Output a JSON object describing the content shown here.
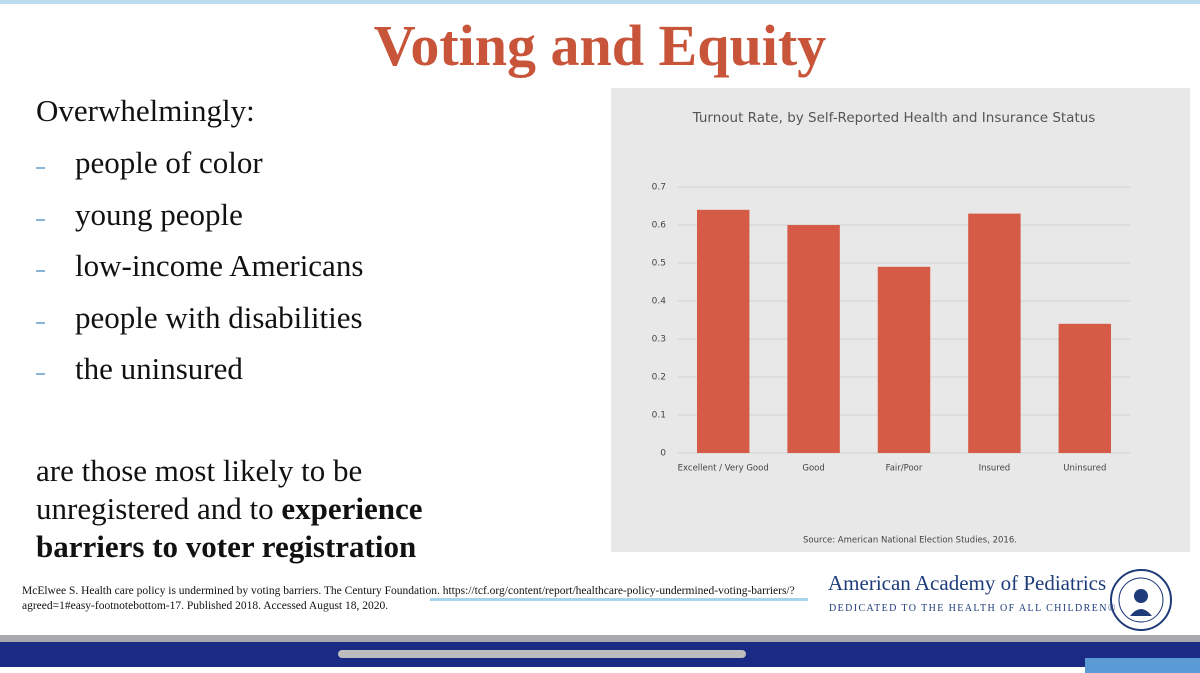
{
  "title": "Voting and Equity",
  "intro": "Overwhelmingly:",
  "bullets": [
    "people of color",
    "young people",
    "low-income Americans",
    "people with disabilities",
    "the uninsured"
  ],
  "conclusion": {
    "text": "are those most likely to be unregistered and to",
    "bold": "experience barriers to voter registration"
  },
  "citation": "McElwee S. Health care policy is undermined by voting barriers. The Century Foundation. https://tcf.org/content/report/healthcare-policy-undermined-voting-barriers/?agreed=1#easy-footnotebottom-17. Published 2018. Accessed August 18, 2020.",
  "logo": {
    "name": "American Academy of Pediatrics",
    "tagline": "DEDICATED TO THE HEALTH OF ALL CHILDREN®"
  },
  "chart_data": {
    "type": "bar",
    "title": "Turnout Rate, by Self-Reported Health and Insurance Status",
    "categories": [
      "Excellent / Very Good",
      "Good",
      "Fair/Poor",
      "Insured",
      "Uninsured"
    ],
    "values": [
      0.64,
      0.6,
      0.49,
      0.63,
      0.34
    ],
    "color": "#d65b46",
    "ylim": [
      0,
      0.7
    ],
    "yticks": [
      0,
      0.1,
      0.2,
      0.3,
      0.4,
      0.5,
      0.6,
      0.7
    ],
    "grid": true,
    "source": "Source: American National Election Studies, 2016."
  }
}
